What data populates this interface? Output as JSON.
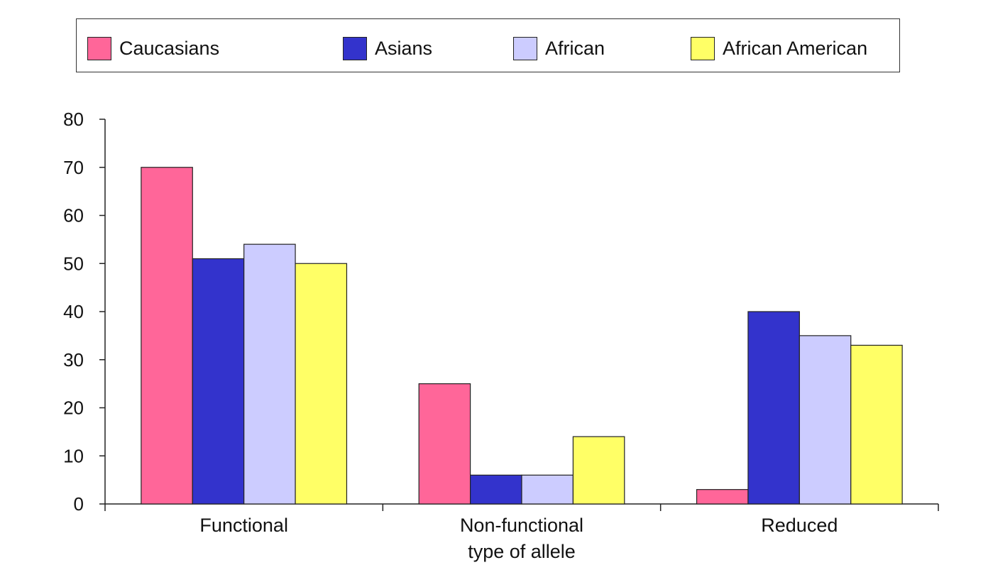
{
  "chart_data": {
    "type": "bar",
    "categories": [
      "Functional",
      "Non-functional",
      "Reduced"
    ],
    "xlabel": "type of allele",
    "ylabel": "",
    "ylim": [
      0,
      80
    ],
    "yticks": [
      0,
      10,
      20,
      30,
      40,
      50,
      60,
      70,
      80
    ],
    "legend_position": "top",
    "grid": false,
    "series": [
      {
        "name": "Caucasians",
        "color": "#ff6699",
        "values": [
          70,
          25,
          3
        ]
      },
      {
        "name": "Asians",
        "color": "#3333cc",
        "values": [
          51,
          6,
          40
        ]
      },
      {
        "name": "African",
        "color": "#ccccff",
        "values": [
          54,
          6,
          35
        ]
      },
      {
        "name": "African American",
        "color": "#ffff66",
        "values": [
          50,
          14,
          33
        ]
      }
    ]
  }
}
